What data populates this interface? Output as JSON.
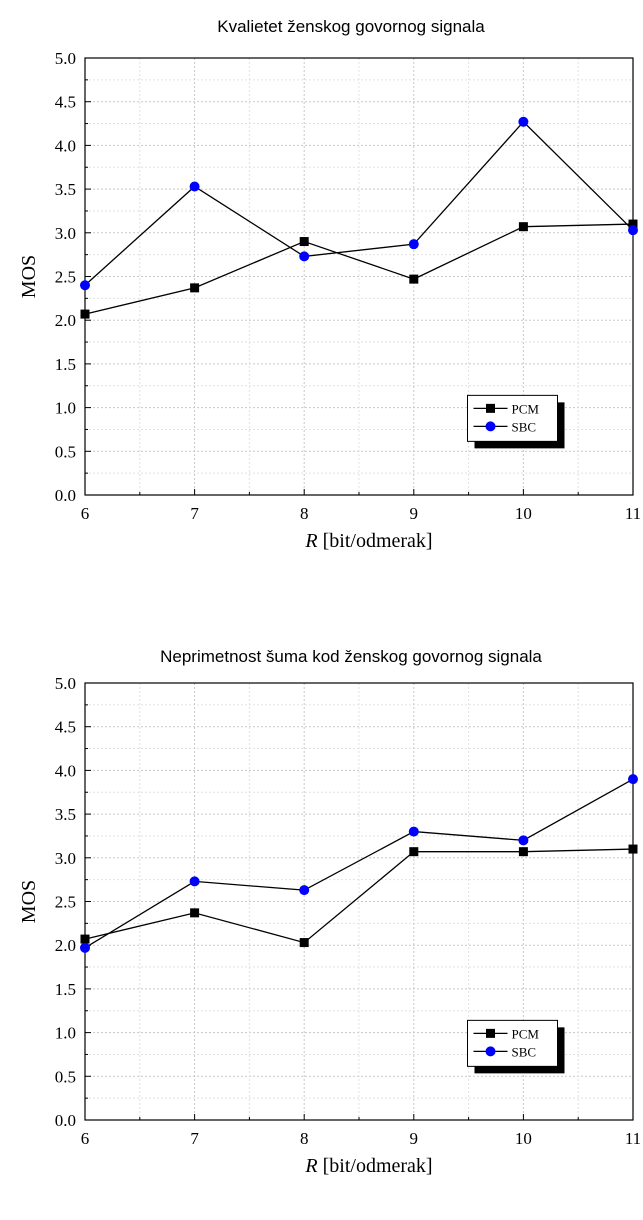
{
  "chart_data": [
    {
      "type": "line",
      "title": "Kvalietet ženskog govornog signala",
      "xlabel_var": "R",
      "xlabel_unit": " [bit/odmerak]",
      "ylabel": "MOS",
      "x": [
        6,
        7,
        8,
        9,
        10,
        11
      ],
      "xlim": [
        6,
        11
      ],
      "ylim": [
        0,
        5
      ],
      "x_ticks": [
        "6",
        "7",
        "8",
        "9",
        "10",
        "11"
      ],
      "y_ticks": [
        "0.0",
        "0.5",
        "1.0",
        "1.5",
        "2.0",
        "2.5",
        "3.0",
        "3.5",
        "4.0",
        "4.5",
        "5.0"
      ],
      "grid": true,
      "legend_position": "bottom-right",
      "series": [
        {
          "name": "PCM",
          "marker": "square",
          "color": "#000000",
          "values": [
            2.07,
            2.37,
            2.9,
            2.47,
            3.07,
            3.1
          ]
        },
        {
          "name": "SBC",
          "marker": "circle",
          "color": "#0000ff",
          "values": [
            2.4,
            3.53,
            2.73,
            2.87,
            4.27,
            3.03
          ]
        }
      ]
    },
    {
      "type": "line",
      "title": "Neprimetnost šuma kod ženskog govornog signala",
      "xlabel_var": "R",
      "xlabel_unit": " [bit/odmerak]",
      "ylabel": "MOS",
      "x": [
        6,
        7,
        8,
        9,
        10,
        11
      ],
      "xlim": [
        6,
        11
      ],
      "ylim": [
        0,
        5
      ],
      "x_ticks": [
        "6",
        "7",
        "8",
        "9",
        "10",
        "11"
      ],
      "y_ticks": [
        "0.0",
        "0.5",
        "1.0",
        "1.5",
        "2.0",
        "2.5",
        "3.0",
        "3.5",
        "4.0",
        "4.5",
        "5.0"
      ],
      "grid": true,
      "legend_position": "bottom-right",
      "series": [
        {
          "name": "PCM",
          "marker": "square",
          "color": "#000000",
          "values": [
            2.07,
            2.37,
            2.03,
            3.07,
            3.07,
            3.1
          ]
        },
        {
          "name": "SBC",
          "marker": "circle",
          "color": "#0000ff",
          "values": [
            1.97,
            2.73,
            2.63,
            3.3,
            3.2,
            3.9
          ]
        }
      ]
    }
  ]
}
